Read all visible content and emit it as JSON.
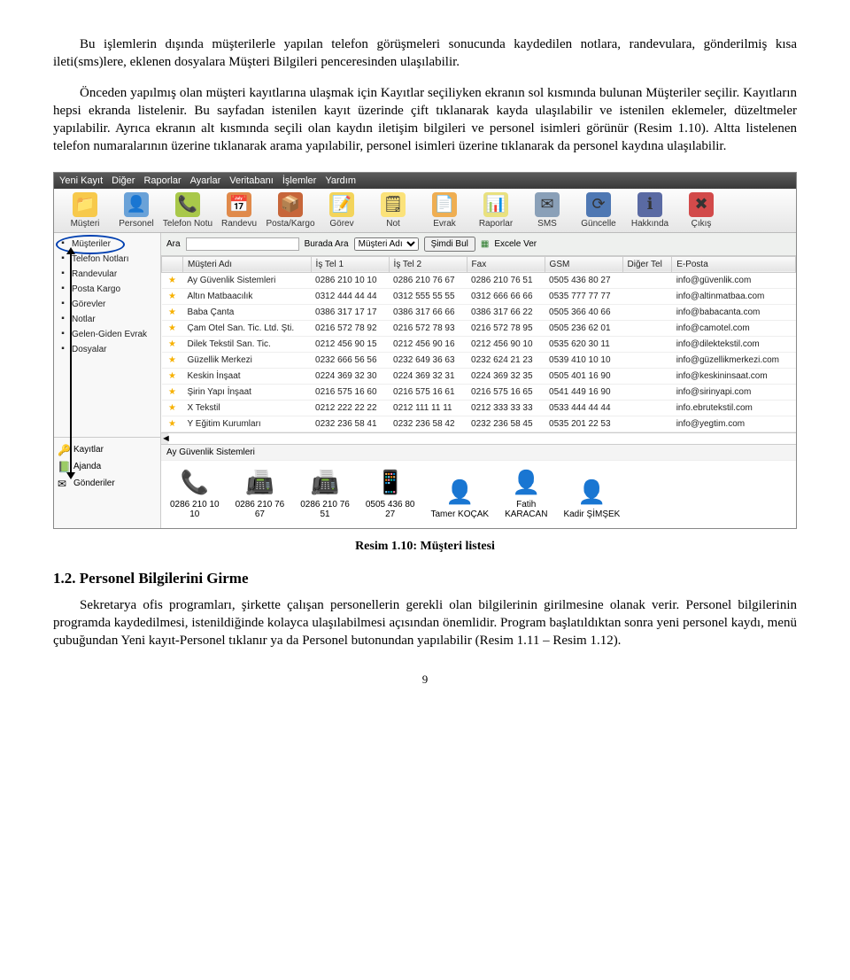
{
  "paragraphs": {
    "p1": "Bu işlemlerin dışında müşterilerle yapılan telefon görüşmeleri sonucunda kaydedilen notlara, randevulara, gönderilmiş kısa ileti(sms)lere, eklenen dosyalara Müşteri Bilgileri penceresinden ulaşılabilir.",
    "p2": "Önceden yapılmış olan müşteri kayıtlarına ulaşmak için Kayıtlar seçiliyken ekranın sol kısmında bulunan Müşteriler seçilir. Kayıtların hepsi ekranda listelenir. Bu sayfadan istenilen kayıt üzerinde çift tıklanarak kayda ulaşılabilir ve istenilen eklemeler, düzeltmeler yapılabilir. Ayrıca ekranın alt kısmında seçili olan kaydın iletişim bilgileri ve personel isimleri görünür (Resim 1.10). Altta listelenen telefon numaralarının üzerine tıklanarak arama yapılabilir, personel isimleri üzerine tıklanarak da personel kaydına ulaşılabilir.",
    "p3": "Sekretarya ofis programları, şirkette çalışan personellerin gerekli olan bilgilerinin girilmesine olanak verir. Personel bilgilerinin programda kaydedilmesi, istenildiğinde kolayca ulaşılabilmesi açısından önemlidir. Program başlatıldıktan sonra yeni personel kaydı, menü çubuğundan Yeni kayıt-Personel tıklanır ya da Personel butonundan yapılabilir (Resim 1.11 – Resim 1.12)."
  },
  "caption": "Resim 1.10: Müşteri listesi",
  "section_heading": "1.2. Personel Bilgilerini Girme",
  "page_number": "9",
  "app": {
    "menus": [
      "Yeni Kayıt",
      "Diğer",
      "Raporlar",
      "Ayarlar",
      "Veritabanı",
      "İşlemler",
      "Yardım"
    ],
    "toolbar": [
      {
        "label": "Müşteri",
        "color": "#f7c94b",
        "glyph": "📁"
      },
      {
        "label": "Personel",
        "color": "#6aa2d8",
        "glyph": "👤"
      },
      {
        "label": "Telefon Notu",
        "color": "#a9c84a",
        "glyph": "📞"
      },
      {
        "label": "Randevu",
        "color": "#e08a4b",
        "glyph": "📅"
      },
      {
        "label": "Posta/Kargo",
        "color": "#c7663a",
        "glyph": "📦"
      },
      {
        "label": "Görev",
        "color": "#f3d45b",
        "glyph": "📝"
      },
      {
        "label": "Not",
        "color": "#fbe27a",
        "glyph": "🗒"
      },
      {
        "label": "Evrak",
        "color": "#efae52",
        "glyph": "📄"
      },
      {
        "label": "Raporlar",
        "color": "#e9e17f",
        "glyph": "📊"
      },
      {
        "label": "SMS",
        "color": "#8aa0b8",
        "glyph": "✉"
      },
      {
        "label": "Güncelle",
        "color": "#4f78b3",
        "glyph": "⟳"
      },
      {
        "label": "Hakkında",
        "color": "#5a6aa3",
        "glyph": "ℹ"
      },
      {
        "label": "Çıkış",
        "color": "#d24a4a",
        "glyph": "✖"
      }
    ],
    "sidebar": {
      "upper": [
        "Müşteriler",
        "Telefon Notları",
        "Randevular",
        "Posta Kargo",
        "Görevler",
        "Notlar",
        "Gelen-Giden Evrak",
        "Dosyalar"
      ],
      "lower": [
        {
          "label": "Kayıtlar",
          "glyph": "🔑"
        },
        {
          "label": "Ajanda",
          "glyph": "📗"
        },
        {
          "label": "Gönderiler",
          "glyph": "✉"
        }
      ]
    },
    "search": {
      "ara": "Ara",
      "burada_ara": "Burada Ara",
      "dropdown": "Müşteri Adı",
      "simdi_bul": "Şimdi Bul",
      "excele_ver": "Excele Ver"
    },
    "columns": [
      "",
      "Müşteri Adı",
      "İş Tel 1",
      "İş Tel 2",
      "Fax",
      "GSM",
      "Diğer Tel",
      "E-Posta"
    ],
    "rows": [
      [
        "Ay Güvenlik Sistemleri",
        "0286 210 10 10",
        "0286 210 76 67",
        "0286 210 76 51",
        "0505 436 80 27",
        "",
        "info@güvenlik.com"
      ],
      [
        "Altın Matbaacılık",
        "0312 444 44 44",
        "0312 555 55 55",
        "0312 666 66 66",
        "0535 777 77 77",
        "",
        "info@altinmatbaa.com"
      ],
      [
        "Baba Çanta",
        "0386 317 17 17",
        "0386 317 66 66",
        "0386 317 66 22",
        "0505 366 40 66",
        "",
        "info@babacanta.com"
      ],
      [
        "Çam Otel San. Tic. Ltd. Şti.",
        "0216 572 78 92",
        "0216 572 78 93",
        "0216 572 78 95",
        "0505 236 62 01",
        "",
        "info@camotel.com"
      ],
      [
        "Dilek Tekstil San. Tic.",
        "0212 456 90 15",
        "0212 456 90 16",
        "0212 456 90 10",
        "0535 620 30 11",
        "",
        "info@dilektekstil.com"
      ],
      [
        "Güzellik Merkezi",
        "0232 666 56 56",
        "0232 649 36 63",
        "0232 624 21 23",
        "0539 410 10 10",
        "",
        "info@güzellikmerkezi.com"
      ],
      [
        "Keskin İnşaat",
        "0224 369 32 30",
        "0224 369 32 31",
        "0224 369 32 35",
        "0505 401 16 90",
        "",
        "info@keskininsaat.com"
      ],
      [
        "Şirin Yapı İnşaat",
        "0216 575 16 60",
        "0216 575 16 61",
        "0216 575 16 65",
        "0541 449 16 90",
        "",
        "info@sirinyapi.com"
      ],
      [
        "X Tekstil",
        "0212 222 22 22",
        "0212 111 11 11",
        "0212 333 33 33",
        "0533 444 44 44",
        "",
        "info.ebrutekstil.com"
      ],
      [
        "Y Eğitim Kurumları",
        "0232 236 58 41",
        "0232 236 58 42",
        "0232 236 58 45",
        "0535 201 22 53",
        "",
        "info@yegtim.com"
      ]
    ],
    "detail": {
      "title": "Ay Güvenlik Sistemleri",
      "items": [
        {
          "glyph": "📞",
          "line1": "0286 210 10",
          "line2": "10"
        },
        {
          "glyph": "📠",
          "line1": "0286 210 76",
          "line2": "67"
        },
        {
          "glyph": "📠",
          "line1": "0286 210 76",
          "line2": "51"
        },
        {
          "glyph": "📱",
          "line1": "0505 436 80",
          "line2": "27"
        },
        {
          "glyph": "👤",
          "line1": "Tamer KOÇAK",
          "line2": ""
        },
        {
          "glyph": "👤",
          "line1": "Fatih",
          "line2": "KARACAN"
        },
        {
          "glyph": "👤",
          "line1": "Kadir ŞİMŞEK",
          "line2": ""
        }
      ]
    }
  }
}
